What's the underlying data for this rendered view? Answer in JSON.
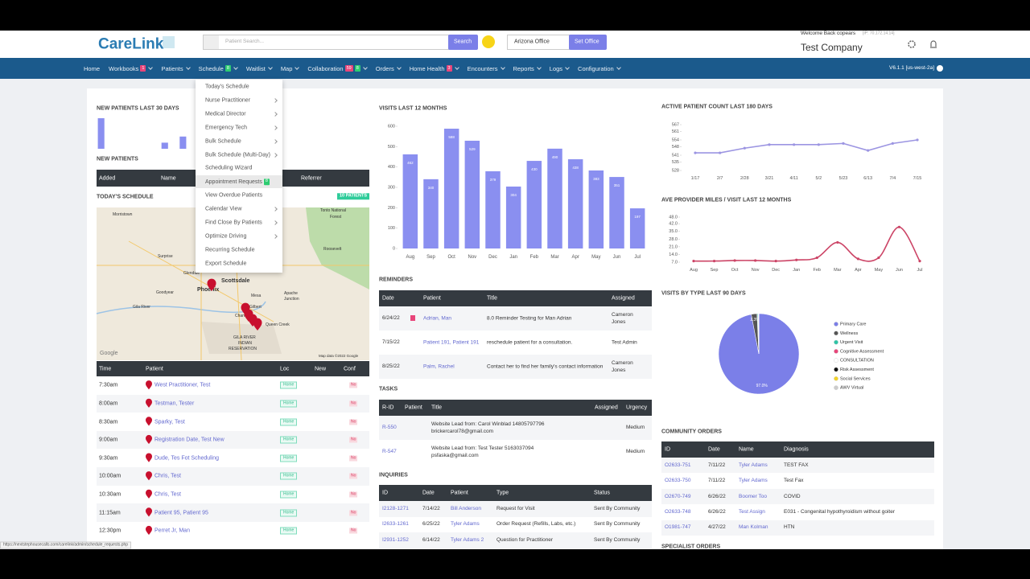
{
  "header": {
    "logo": "CareLink",
    "search_placeholder": "Patient Search...",
    "search_button": "Search",
    "office": "Arizona Office",
    "set_office": "Set Office",
    "welcome": "Welcome Back copears",
    "ip": "[IP: 70.172.14.14]",
    "company": "Test Company"
  },
  "nav": {
    "items": [
      {
        "label": "Home"
      },
      {
        "label": "Workbooks",
        "badges": [
          {
            "text": "1",
            "color": "#e8457a"
          }
        ],
        "dropdown": true
      },
      {
        "label": "Patients",
        "dropdown": true
      },
      {
        "label": "Schedule",
        "badges": [
          {
            "text": "8",
            "color": "#2ecc71"
          }
        ],
        "dropdown": true
      },
      {
        "label": "Waitlist",
        "dropdown": true
      },
      {
        "label": "Map",
        "dropdown": true
      },
      {
        "label": "Collaboration",
        "badges": [
          {
            "text": "59",
            "color": "#e8457a"
          },
          {
            "text": "8",
            "color": "#2ecc71"
          }
        ],
        "dropdown": true
      },
      {
        "label": "Orders",
        "dropdown": true
      },
      {
        "label": "Home Health",
        "badges": [
          {
            "text": "3",
            "color": "#e8457a"
          }
        ],
        "dropdown": true
      },
      {
        "label": "Encounters",
        "dropdown": true
      },
      {
        "label": "Reports",
        "dropdown": true
      },
      {
        "label": "Logs",
        "dropdown": true
      },
      {
        "label": "Configuration",
        "dropdown": true
      }
    ],
    "version": "V6.1.1 [us-west-2a]"
  },
  "schedule_menu": {
    "items": [
      {
        "label": "Today's Schedule"
      },
      {
        "label": "Nurse Practitioner",
        "sub": true
      },
      {
        "label": "Medical Director",
        "sub": true
      },
      {
        "label": "Emergency Tech",
        "sub": true
      },
      {
        "label": "Bulk Schedule",
        "sub": true
      },
      {
        "label": "Bulk Schedule (Multi-Day)",
        "sub": true
      },
      {
        "label": "Scheduling Wizard"
      },
      {
        "label": "Appointment Requests",
        "badge": "8",
        "active": true
      },
      {
        "label": "View Overdue Patients"
      },
      {
        "label": "Calendar View",
        "sub": true
      },
      {
        "label": "Find Close By Patients",
        "sub": true
      },
      {
        "label": "Optimize Driving",
        "sub": true
      },
      {
        "label": "Recurring Schedule"
      },
      {
        "label": "Export Schedule"
      }
    ]
  },
  "new_patients": {
    "title": "NEW PATIENTS",
    "columns": [
      "Added",
      "Name",
      "Referrer"
    ]
  },
  "schedule": {
    "title": "TODAY'S SCHEDULE",
    "badge": "10 PATIENTS",
    "map": {
      "labels": [
        "Morristown",
        "Tonto National",
        "Forest",
        "Surprise",
        "Glendale",
        "Scottsdale",
        "Phoenix",
        "Goodyear",
        "Mesa",
        "Gilbert",
        "Chandler",
        "Apache",
        "Junction",
        "Queen Creek",
        "Gila River",
        "Roosevelt",
        "GILA RIVER",
        "INDIAN",
        "RESERVATION",
        "Google",
        "Map data ©2022 Google"
      ]
    },
    "columns": [
      "Time",
      "Patient",
      "Loc",
      "New",
      "Conf"
    ],
    "rows": [
      {
        "time": "7:30am",
        "patient": "West Practitioner, Test",
        "loc": "Home",
        "conf": "No"
      },
      {
        "time": "8:00am",
        "patient": "Testman, Tester",
        "loc": "Home",
        "conf": "No"
      },
      {
        "time": "8:30am",
        "patient": "Sparky, Test",
        "loc": "Home",
        "conf": "No"
      },
      {
        "time": "9:00am",
        "patient": "Registration Date, Test New",
        "loc": "Home",
        "conf": "No"
      },
      {
        "time": "9:30am",
        "patient": "Dude, Tes Fot Scheduling",
        "loc": "Home",
        "conf": "No"
      },
      {
        "time": "10:00am",
        "patient": "Chris, Test",
        "loc": "Home",
        "conf": "No"
      },
      {
        "time": "10:30am",
        "patient": "Chris, Test",
        "loc": "Home",
        "conf": "No"
      },
      {
        "time": "11:15am",
        "patient": "Patient 95, Patient 95",
        "loc": "Home",
        "conf": "No"
      },
      {
        "time": "12:30pm",
        "patient": "Perret Jr, Man",
        "loc": "Home",
        "conf": "No"
      }
    ]
  },
  "reminders": {
    "title": "REMINDERS",
    "columns": [
      "Date",
      "Patient",
      "Title",
      "Assigned"
    ],
    "rows": [
      {
        "date": "6/24/22",
        "flag": true,
        "patient": "Adrian, Man",
        "title": "8.0 Reminder Testing for Man Adrian",
        "assigned": "Cameron Jones"
      },
      {
        "date": "7/15/22",
        "patient": "Patient 191, Patient 191",
        "title": "reschedule patient for a consultation.",
        "assigned": "Test Admin"
      },
      {
        "date": "8/25/22",
        "patient": "Palm, Rachel",
        "title": "Contact her to find her family's contact information",
        "assigned": "Cameron Jones"
      }
    ]
  },
  "tasks": {
    "title": "TASKS",
    "columns": [
      "R-ID",
      "Patient",
      "Title",
      "Assigned",
      "Urgency"
    ],
    "rows": [
      {
        "rid": "R-550",
        "title": "Website Lead from: Carol Winblad 14805797796 brickercarol78@gmail.com",
        "urgency": "Medium"
      },
      {
        "rid": "R-547",
        "title": "Website Lead from: Test Tester 5163037094 psfaska@gmail.com",
        "urgency": "Medium"
      }
    ]
  },
  "inquiries": {
    "title": "INQUIRIES",
    "columns": [
      "ID",
      "Date",
      "Patient",
      "Type",
      "Status"
    ],
    "rows": [
      [
        "I2128-1271",
        "7/14/22",
        "Bill Anderson",
        "Request for Visit",
        "Sent By Community"
      ],
      [
        "I2633-1261",
        "6/25/22",
        "Tyler Adams",
        "Order Request (Refills, Labs, etc.)",
        "Sent By Community"
      ],
      [
        "I2931-1252",
        "6/14/22",
        "Tyler Adams 2",
        "Question for Practitioner",
        "Sent By Community"
      ]
    ]
  },
  "community_orders": {
    "title": "COMMUNITY ORDERS",
    "columns": [
      "ID",
      "Date",
      "Name",
      "Diagnosis"
    ],
    "rows": [
      [
        "O2633-751",
        "7/11/22",
        "Tyler Adams",
        "TEST FAX"
      ],
      [
        "O2633-750",
        "7/11/22",
        "Tyler Adams",
        "Test Fax"
      ],
      [
        "O2670-749",
        "6/26/22",
        "Boomer Too",
        "COVID"
      ],
      [
        "O2633-748",
        "6/26/22",
        "Test Assign",
        "E031 - Congenital hypothyroidism without goiter"
      ],
      [
        "O1981-747",
        "4/27/22",
        "Man Kolman",
        "HTN"
      ]
    ]
  },
  "specialist_orders": {
    "title": "SPECIALIST ORDERS"
  },
  "status_url": "https://nextstephousecalls.com/carelink/admin/schedule_requests.php",
  "chart_data": [
    {
      "type": "bar",
      "title": "NEW PATIENTS LAST 30 DAYS",
      "values": [
        5,
        0,
        0,
        0,
        0,
        0,
        0,
        1,
        0,
        2,
        0,
        0,
        0,
        0,
        0,
        0,
        0,
        0,
        0,
        0,
        0,
        0,
        0,
        0,
        0,
        0,
        0,
        0,
        0,
        0
      ],
      "ylim": [
        0,
        5
      ],
      "color": "#8a8ff0"
    },
    {
      "type": "bar",
      "title": "VISITS LAST 12 MONTHS",
      "categories": [
        "Aug",
        "Sep",
        "Oct",
        "Nov",
        "Dec",
        "Jan",
        "Feb",
        "Mar",
        "Apr",
        "May",
        "Jun",
        "Jul"
      ],
      "values": [
        462,
        340,
        588,
        529,
        379,
        304,
        430,
        490,
        438,
        383,
        351,
        197
      ],
      "ylim": [
        0,
        600
      ],
      "yticks": [
        0,
        100,
        200,
        300,
        400,
        500,
        600
      ],
      "color": "#8a8ff0",
      "data_labels": true
    },
    {
      "type": "line",
      "title": "ACTIVE PATIENT COUNT LAST 180 DAYS",
      "categories": [
        "1/17",
        "2/7",
        "2/28",
        "3/21",
        "4/11",
        "5/2",
        "5/23",
        "6/13",
        "7/4",
        "7/15"
      ],
      "values": [
        543,
        543,
        547,
        550,
        550,
        550,
        551,
        545,
        551,
        554
      ],
      "ylim": [
        528,
        567
      ],
      "yticks": [
        528,
        535,
        541,
        548,
        554,
        561,
        567
      ],
      "color": "#9c95e2"
    },
    {
      "type": "line",
      "title": "AVE PROVIDER MILES / VISIT LAST 12 MONTHS",
      "categories": [
        "Aug",
        "Sep",
        "Oct",
        "Nov",
        "Dec",
        "Jan",
        "Feb",
        "Mar",
        "Apr",
        "May",
        "Jun",
        "Jul"
      ],
      "values": [
        8,
        8,
        8.5,
        8.5,
        8,
        9,
        11,
        25,
        10,
        11,
        39,
        8
      ],
      "ylim": [
        7,
        48
      ],
      "yticks": [
        {
          "value": 7,
          "label": "7.0"
        },
        {
          "value": 14,
          "label": "14.0"
        },
        {
          "value": 21,
          "label": "21.0"
        },
        {
          "value": 28,
          "label": "28.0"
        },
        {
          "value": 35,
          "label": "35.0"
        },
        {
          "value": 42,
          "label": "42.0"
        },
        {
          "value": 48,
          "label": "48.0"
        }
      ],
      "color": "#cc4466",
      "smooth": true
    },
    {
      "type": "pie",
      "title": "VISITS BY TYPE LAST 90 DAYS",
      "categories": [
        "Primary Care",
        "Wellness",
        "Urgent Visit",
        "Cognitive Assessment",
        "CONSULTATION",
        "Risk Assessment",
        "Social Services",
        "AWV Virtual"
      ],
      "values": [
        97.0,
        2.3,
        0.3,
        0.2,
        0.1,
        0.05,
        0.05,
        0
      ],
      "value_labels": [
        "97.0%",
        "2.3%",
        null,
        null,
        null,
        null,
        null,
        null
      ],
      "colors": [
        "#7b7fe8",
        "#555555",
        "#2ec4a6",
        "#e8457a",
        "#ffffff",
        "#111111",
        "#f3d32a",
        "#cccccc"
      ]
    }
  ]
}
